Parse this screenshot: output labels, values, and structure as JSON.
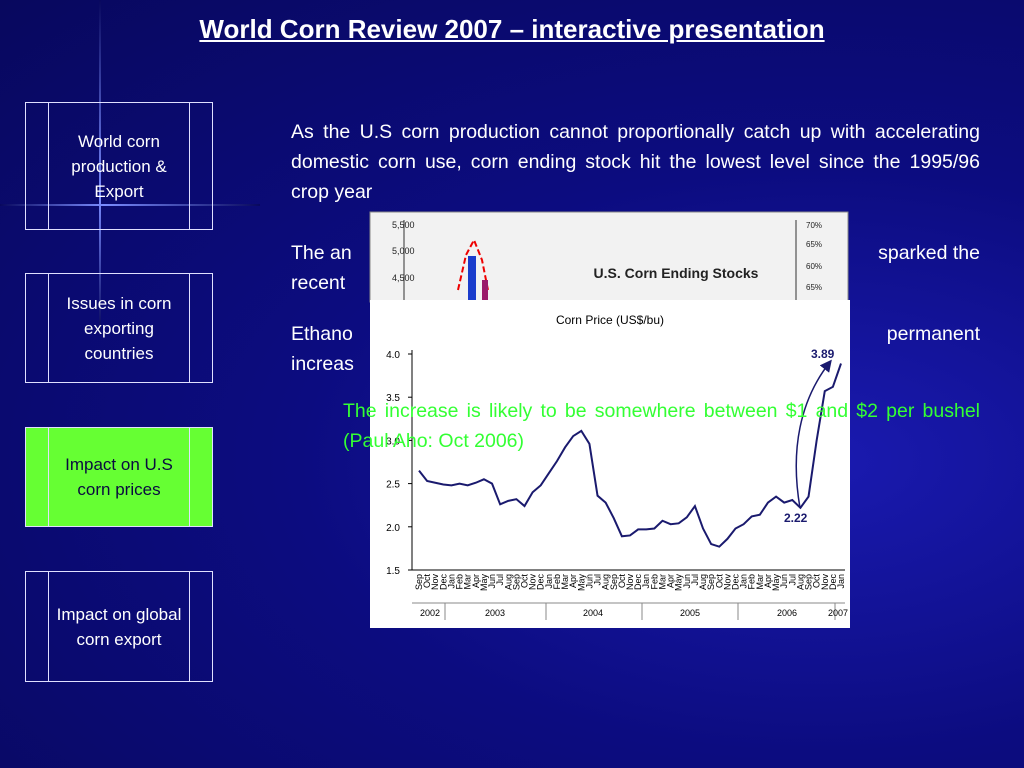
{
  "title": "World Corn Review 2007 – interactive presentation",
  "nav": [
    "World corn production & Export",
    "Issues in corn exporting countries",
    "Impact on U.S corn prices",
    "Impact on global corn export"
  ],
  "paragraphs": [
    "As the U.S corn production cannot proportionally catch up with accelerating domestic corn use, corn ending stock hit the lowest level since the 1995/96 crop year"
  ],
  "obscured_text": [
    "The an",
    "sparked the",
    "recent",
    "Ethano",
    "permanent",
    "increas"
  ],
  "note": "The increase is likely to be somewhere between $1 and $2 per bushel (Paul Aho: Oct 2006)",
  "ending_stocks_chart": {
    "title": "U.S. Corn Ending Stocks",
    "left_labels": [
      "5,500",
      "5,000",
      "4,500"
    ],
    "right_labels": [
      "70%",
      "65%",
      "60%",
      "65%"
    ]
  },
  "chart_data": {
    "type": "line",
    "title": "Corn Price (US$/bu)",
    "categories": [
      "Sep",
      "Oct",
      "Nov",
      "Dec",
      "Jan",
      "Feb",
      "Mar",
      "Apr",
      "May",
      "Jun",
      "Jul",
      "Aug",
      "Sep",
      "Oct",
      "Nov",
      "Dec",
      "Jan",
      "Feb",
      "Mar",
      "Apr",
      "May",
      "Jun",
      "Jul",
      "Aug",
      "Sep",
      "Oct",
      "Nov",
      "Dec",
      "Jan",
      "Feb",
      "Mar",
      "Apr",
      "May",
      "Jun",
      "Jul",
      "Aug",
      "Sep",
      "Oct",
      "Nov",
      "Dec",
      "Jan",
      "Feb",
      "Mar",
      "Apr",
      "May",
      "Jun",
      "Jul",
      "Aug",
      "Sep",
      "Oct",
      "Nov",
      "Dec",
      "Jan"
    ],
    "years": [
      "2002",
      "2003",
      "2004",
      "2005",
      "2006",
      "2007"
    ],
    "values": [
      2.65,
      2.53,
      2.51,
      2.49,
      2.48,
      2.5,
      2.48,
      2.51,
      2.55,
      2.5,
      2.26,
      2.3,
      2.32,
      2.24,
      2.4,
      2.48,
      2.62,
      2.76,
      2.92,
      3.05,
      3.11,
      2.96,
      2.36,
      2.28,
      2.1,
      1.89,
      1.9,
      1.97,
      1.97,
      1.98,
      2.07,
      2.03,
      2.04,
      2.11,
      2.24,
      1.98,
      1.8,
      1.77,
      1.86,
      1.98,
      2.03,
      2.12,
      2.14,
      2.28,
      2.35,
      2.28,
      2.31,
      2.22,
      2.35,
      3.0,
      3.57,
      3.62,
      3.89
    ],
    "color": "#1a1a6e",
    "ylim": [
      1.5,
      4.0
    ],
    "yticks": [
      1.5,
      {
        "value": 2.0,
        "label": "2.0"
      },
      2.5,
      {
        "value": 3.0,
        "label": "3.0"
      },
      3.5,
      {
        "value": 4.0,
        "label": "4.0"
      }
    ],
    "annotations": [
      "3.89",
      "2.22"
    ]
  }
}
